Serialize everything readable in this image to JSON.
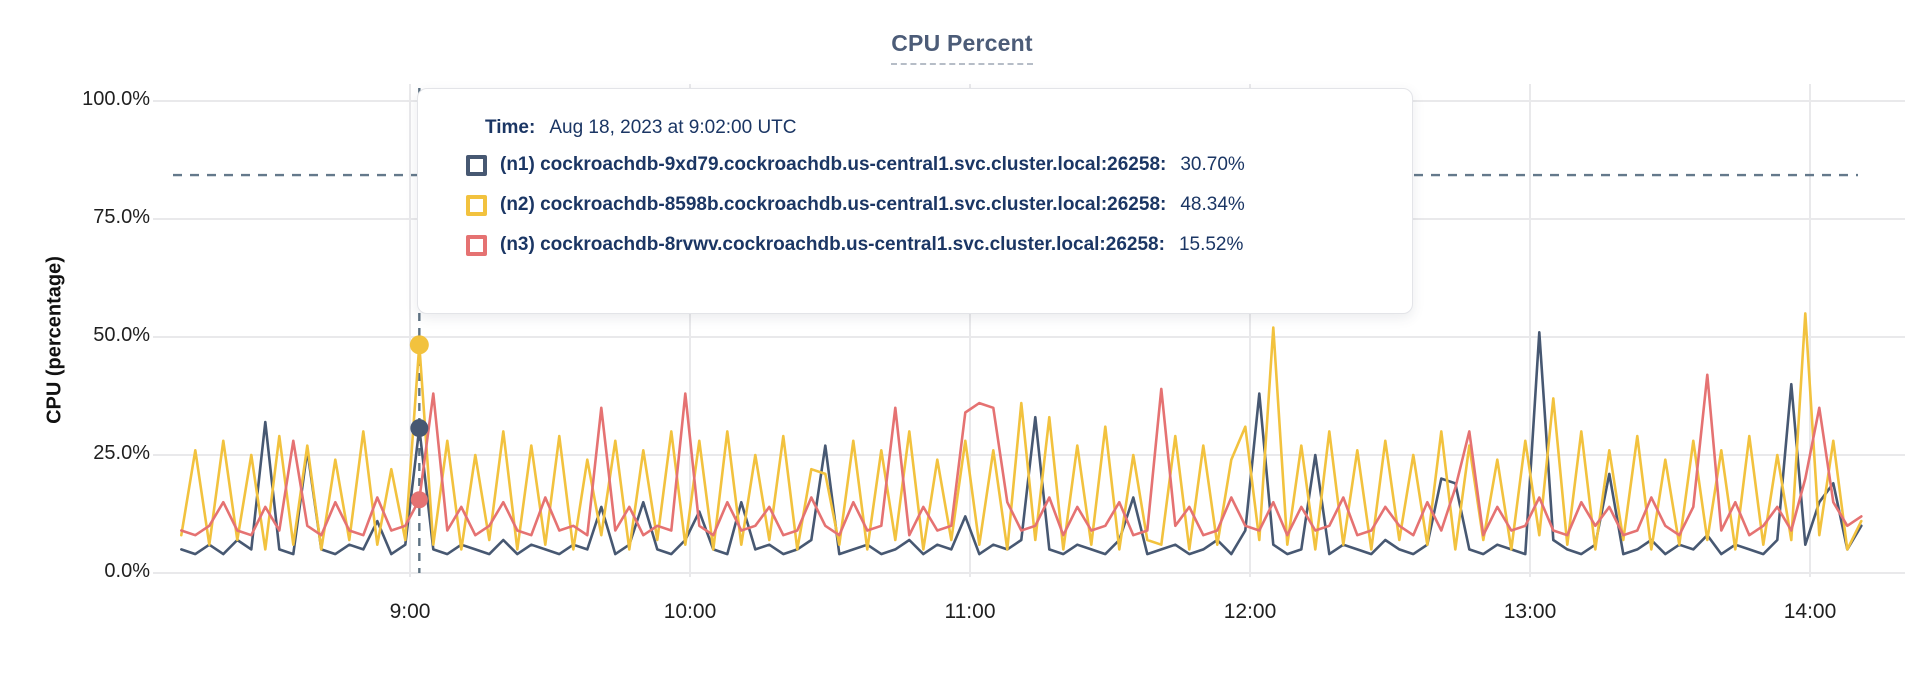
{
  "title": "CPU Percent",
  "y_axis": {
    "title": "CPU (percentage)",
    "tick_labels": [
      "100.0%",
      "75.0%",
      "50.0%",
      "25.0%",
      "0.0%"
    ]
  },
  "x_axis": {
    "tick_labels": [
      "9:00",
      "10:00",
      "11:00",
      "12:00",
      "13:00",
      "14:00"
    ]
  },
  "tooltip": {
    "time_label": "Time:",
    "time_value": "Aug 18, 2023 at 9:02:00 UTC",
    "series": [
      {
        "label": "(n1) cockroachdb-9xd79.cockroachdb.us-central1.svc.cluster.local:26258:",
        "value": "30.70%",
        "color": "#475872"
      },
      {
        "label": "(n2) cockroachdb-8598b.cockroachdb.us-central1.svc.cluster.local:26258:",
        "value": "48.34%",
        "color": "#f2c23e"
      },
      {
        "label": "(n3) cockroachdb-8rvwv.cockroachdb.us-central1.svc.cluster.local:26258:",
        "value": "15.52%",
        "color": "#e57272"
      }
    ]
  },
  "colors": {
    "n1_line": "#475872",
    "n2_line": "#f2c23e",
    "n3_line": "#e57272",
    "gridline": "#e9e9eb",
    "threshold_dash": "#64798b",
    "hover_dash": "#5d7283",
    "title_text": "#4c5c78",
    "tooltip_text": "#1b3664"
  },
  "chart_data": {
    "type": "line",
    "title": "CPU Percent",
    "xlabel": "",
    "ylabel": "CPU (percentage)",
    "ylim": [
      0,
      100
    ],
    "y_ticks_pct": [
      0,
      25,
      50,
      75,
      100
    ],
    "x_tick_labels": [
      "9:00",
      "10:00",
      "11:00",
      "12:00",
      "13:00",
      "14:00"
    ],
    "x_range": [
      "8:11",
      "14:11"
    ],
    "x_step_minutes": 3,
    "grid": "on",
    "legend_position": "tooltip-overlay",
    "threshold_line_pct": 84.3,
    "hover": {
      "time": "Aug 18, 2023 at 9:02:00 UTC",
      "x_index": 17,
      "values_pct": {
        "n1": 30.7,
        "n2": 48.34,
        "n3": 15.52
      }
    },
    "series": [
      {
        "name": "(n1) cockroachdb-9xd79.cockroachdb.us-central1.svc.cluster.local:26258",
        "color": "#475872",
        "values": [
          5,
          4,
          6,
          4,
          7,
          5,
          32,
          5,
          4,
          26,
          5,
          4,
          6,
          5,
          11,
          4,
          6,
          30.7,
          5,
          4,
          6,
          5,
          4,
          7,
          4,
          6,
          5,
          4,
          6,
          5,
          14,
          4,
          6,
          15,
          5,
          4,
          7,
          13,
          5,
          4,
          15,
          5,
          6,
          4,
          5,
          7,
          27,
          4,
          5,
          6,
          4,
          5,
          7,
          4,
          6,
          5,
          12,
          4,
          6,
          5,
          7,
          33,
          5,
          4,
          6,
          5,
          4,
          7,
          16,
          4,
          5,
          6,
          4,
          5,
          7,
          4,
          9,
          38,
          6,
          4,
          5,
          25,
          4,
          6,
          5,
          4,
          7,
          5,
          4,
          6,
          20,
          19,
          5,
          4,
          6,
          5,
          4,
          51,
          7,
          5,
          4,
          6,
          21,
          4,
          5,
          7,
          4,
          6,
          5,
          8,
          4,
          6,
          5,
          4,
          7,
          40,
          6,
          15,
          19,
          5,
          10
        ]
      },
      {
        "name": "(n2) cockroachdb-8598b.cockroachdb.us-central1.svc.cluster.local:26258",
        "color": "#f2c23e",
        "values": [
          8,
          26,
          6,
          28,
          7,
          25,
          5,
          29,
          6,
          27,
          5,
          24,
          7,
          30,
          6,
          22,
          7,
          48.34,
          6,
          28,
          5,
          25,
          7,
          30,
          5,
          27,
          6,
          29,
          5,
          24,
          8,
          28,
          5,
          26,
          7,
          30,
          6,
          28,
          5,
          30,
          6,
          25,
          7,
          29,
          5,
          22,
          21,
          6,
          28,
          5,
          26,
          7,
          30,
          5,
          24,
          7,
          28,
          6,
          26,
          5,
          36,
          7,
          33,
          5,
          27,
          6,
          31,
          5,
          25,
          7,
          6,
          29,
          5,
          27,
          6,
          24,
          31,
          7,
          52,
          6,
          27,
          5,
          30,
          6,
          26,
          5,
          28,
          7,
          25,
          6,
          30,
          5,
          27,
          7,
          24,
          5,
          28,
          8,
          37,
          6,
          30,
          5,
          26,
          7,
          29,
          5,
          24,
          6,
          28,
          7,
          26,
          5,
          29,
          6,
          25,
          7,
          55,
          8,
          28,
          5,
          11
        ]
      },
      {
        "name": "(n3) cockroachdb-8rvwv.cockroachdb.us-central1.svc.cluster.local:26258",
        "color": "#e57272",
        "values": [
          9,
          8,
          10,
          15,
          9,
          8,
          14,
          9,
          28,
          10,
          8,
          15,
          9,
          8,
          16,
          9,
          10,
          15.52,
          38,
          9,
          14,
          8,
          10,
          15,
          9,
          8,
          16,
          9,
          10,
          8,
          35,
          9,
          14,
          8,
          10,
          9,
          38,
          10,
          8,
          15,
          9,
          10,
          14,
          8,
          9,
          16,
          10,
          8,
          15,
          9,
          10,
          35,
          8,
          14,
          9,
          10,
          34,
          36,
          35,
          15,
          9,
          10,
          16,
          8,
          14,
          9,
          10,
          15,
          8,
          9,
          39,
          10,
          14,
          8,
          9,
          16,
          10,
          9,
          15,
          8,
          14,
          9,
          10,
          16,
          8,
          9,
          14,
          10,
          8,
          15,
          9,
          18,
          30,
          8,
          14,
          9,
          10,
          16,
          9,
          8,
          15,
          10,
          14,
          8,
          9,
          16,
          10,
          8,
          14,
          42,
          9,
          15,
          8,
          10,
          14,
          9,
          20,
          35,
          15,
          10,
          12
        ]
      }
    ]
  }
}
